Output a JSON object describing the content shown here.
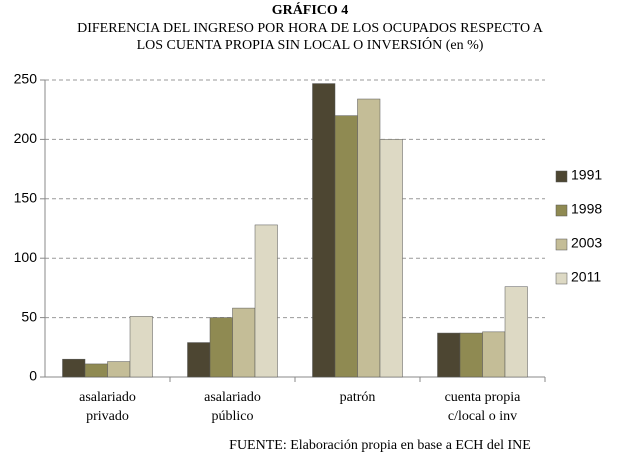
{
  "chart_data": {
    "type": "bar",
    "title": "GRÁFICO 4",
    "subtitle": [
      "DIFERENCIA DEL INGRESO POR HORA DE LOS OCUPADOS  RESPECTO A",
      "LOS CUENTA PROPIA SIN LOCAL O INVERSIÓN (en %)"
    ],
    "categories": [
      [
        "asalariado",
        "privado"
      ],
      [
        "asalariado",
        "público"
      ],
      [
        "patrón"
      ],
      [
        "cuenta propia",
        "c/local o inv"
      ]
    ],
    "series": [
      {
        "name": "1991",
        "color": "#4d4632",
        "values": [
          15,
          29,
          247,
          37
        ]
      },
      {
        "name": "1998",
        "color": "#8f8a52",
        "values": [
          11,
          50,
          220,
          37
        ]
      },
      {
        "name": "2003",
        "color": "#c4bd97",
        "values": [
          13,
          58,
          234,
          38
        ]
      },
      {
        "name": "2011",
        "color": "#ddd9c4",
        "values": [
          51,
          128,
          200,
          76
        ]
      }
    ],
    "ylim": [
      0,
      250
    ],
    "yticks": [
      0,
      50,
      100,
      150,
      200,
      250
    ],
    "grid": true,
    "legend": "right",
    "note": "FUENTE: Elaboración propia en base a ECH del INE"
  }
}
